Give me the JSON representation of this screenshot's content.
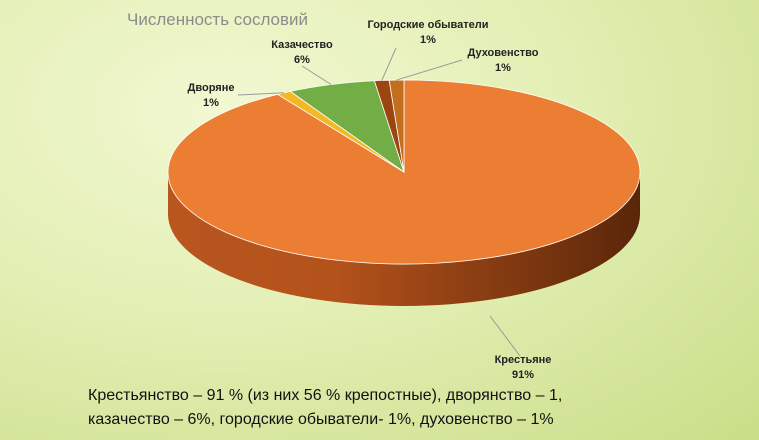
{
  "chart_data": {
    "type": "pie",
    "title": "Численность сословий",
    "categories": [
      "Крестьяне",
      "Дворяне",
      "Казачество",
      "Городские обыватели",
      "Духовенство"
    ],
    "values": [
      91,
      1,
      6,
      1,
      1
    ],
    "value_labels": [
      "91%",
      "1%",
      "6%",
      "1%",
      "1%"
    ],
    "colors": [
      "#ec7e33",
      "#f5b825",
      "#72ad46",
      "#9c4511",
      "#c16f1d"
    ],
    "three_d": true,
    "legend": "none"
  },
  "caption": {
    "line1": "Крестьянство – 91 % (из них 56 % крепостные), дворянство – 1,",
    "line2": "казачество – 6%, городские обыватели- 1%, духовенство – 1%"
  }
}
